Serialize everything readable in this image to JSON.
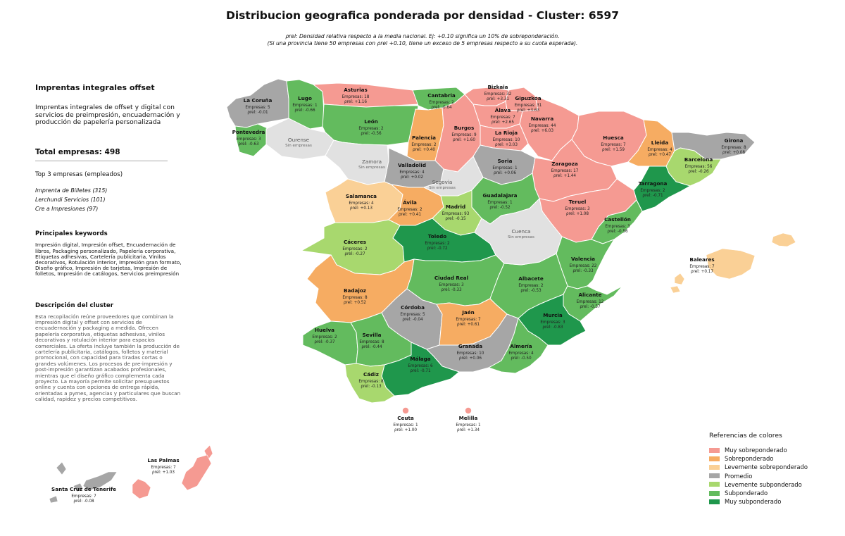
{
  "title": "Distribucion geografica ponderada por densidad - Cluster: 6597",
  "subtitle": {
    "line1": "ρrel: Densidad relativa respecto a la media nacional. Ej: +0.10 significa un 10% de sobreponderación.",
    "line2": "(Si una provincia tiene 50 empresas con ρrel +0.10, tiene un exceso de 5 empresas respecto a su cuota esperada)."
  },
  "sidebar": {
    "cluster_name": "Imprentas integrales offset",
    "cluster_summary": "Imprentas integrales de offset y digital con servicios de preimpresión, encuadernación y producción de papelería personalizada",
    "total_label": "Total empresas: 498",
    "top3_label": "Top 3 empresas (empleados)",
    "top3": [
      "Imprenta de Billetes (315)",
      "Lerchundi Servicios (101)",
      "Cre a Impresiones (97)"
    ],
    "keywords_label": "Principales keywords",
    "keywords": "Impresión digital, Impresión offset, Encuadernación de libros, Packaging personalizado, Papelería corporativa, Etiquetas adhesivas, Cartelería publicitaria, Vinilos decorativos, Rotulación interior, Impresión gran formato, Diseño gráfico, Impresión de tarjetas, Impresión de folletos, Impresión de catálogos, Servicios preimpresión",
    "description_label": "Descripción del cluster",
    "description": "Esta recopilación reúne proveedores que combinan la impresión digital y offset con servicios de encuadernación y packaging a medida. Ofrecen papelería corporativa, etiquetas adhesivas, vinilos decorativos y rotulación interior para espacios comerciales. La oferta incluye también la producción de cartelería publicitaria, catálogos, folletos y material promocional, con capacidad para tiradas cortas o grandes volúmenes. Los procesos de pre-impresión y post-impresión garantizan acabados profesionales, mientras que el diseño gráfico complementa cada proyecto. La mayoría permite solicitar presupuestos online y cuenta con opciones de entrega rápida, orientadas a pymes, agencias y particulares que buscan calidad, rapidez y precios competitivos."
  },
  "legend": {
    "title": "Referencias de colores",
    "items": [
      {
        "key": "muy_sobre",
        "label": "Muy sobreponderado",
        "color": "#f59a92"
      },
      {
        "key": "sobre",
        "label": "Sobreponderado",
        "color": "#f6ac62"
      },
      {
        "key": "lev_sobre",
        "label": "Levemente sobreponderado",
        "color": "#fad096"
      },
      {
        "key": "promedio",
        "label": "Promedio",
        "color": "#a6a6a6"
      },
      {
        "key": "lev_sub",
        "label": "Levemente subponderado",
        "color": "#a8d86e"
      },
      {
        "key": "sub",
        "label": "Subponderado",
        "color": "#63bb5e"
      },
      {
        "key": "muy_sub",
        "label": "Muy subponderado",
        "color": "#1f974c"
      }
    ]
  },
  "no_data_color": "#e1e1e1",
  "empresas_prefix": "Empresas: ",
  "rho_prefix": "ρrel: ",
  "no_data_label": "Sin empresas",
  "provinces": [
    {
      "name": "La Coruña",
      "empresas": 5,
      "rho": "-0.01",
      "cat": "promedio"
    },
    {
      "name": "Lugo",
      "empresas": 1,
      "rho": "-0.66",
      "cat": "sub"
    },
    {
      "name": "Asturias",
      "empresas": 18,
      "rho": "+1.16",
      "cat": "muy_sobre"
    },
    {
      "name": "Cantabria",
      "empresas": 2,
      "rho": "-0.64",
      "cat": "sub"
    },
    {
      "name": "Bizkaia",
      "empresas": 32,
      "rho": "+3.31",
      "cat": "muy_sobre"
    },
    {
      "name": "Gipuzkoa",
      "empresas": 31,
      "rho": "+3.63",
      "cat": "muy_sobre"
    },
    {
      "name": "Álava",
      "empresas": 7,
      "rho": "+2.65",
      "cat": "muy_sobre"
    },
    {
      "name": "Navarra",
      "empresas": 44,
      "rho": "+6.03",
      "cat": "muy_sobre"
    },
    {
      "name": "Pontevedra",
      "empresas": 3,
      "rho": "-0.63",
      "cat": "sub"
    },
    {
      "name": "León",
      "empresas": 2,
      "rho": "-0.56",
      "cat": "sub"
    },
    {
      "name": "Palencia",
      "empresas": 2,
      "rho": "+0.40",
      "cat": "sobre"
    },
    {
      "name": "Burgos",
      "empresas": 9,
      "rho": "+1.60",
      "cat": "muy_sobre"
    },
    {
      "name": "La Rioja",
      "empresas": 10,
      "rho": "+3.03",
      "cat": "muy_sobre"
    },
    {
      "name": "Huesca",
      "empresas": 7,
      "rho": "+1.59",
      "cat": "muy_sobre"
    },
    {
      "name": "Lleida",
      "empresas": 4,
      "rho": "+0.47",
      "cat": "sobre"
    },
    {
      "name": "Girona",
      "empresas": 8,
      "rho": "+0.08",
      "cat": "promedio"
    },
    {
      "name": "Barcelona",
      "empresas": 56,
      "rho": "-0.26",
      "cat": "lev_sub"
    },
    {
      "name": "Valladolid",
      "empresas": 4,
      "rho": "+0.02",
      "cat": "promedio"
    },
    {
      "name": "Soria",
      "empresas": 1,
      "rho": "+0.06",
      "cat": "promedio"
    },
    {
      "name": "Zaragoza",
      "empresas": 17,
      "rho": "+1.44",
      "cat": "muy_sobre"
    },
    {
      "name": "Tarragona",
      "empresas": 2,
      "rho": "-0.71",
      "cat": "muy_sub"
    },
    {
      "name": "Salamanca",
      "empresas": 4,
      "rho": "+0.13",
      "cat": "lev_sobre"
    },
    {
      "name": "Ávila",
      "empresas": 2,
      "rho": "+0.41",
      "cat": "sobre"
    },
    {
      "name": "Madrid",
      "empresas": 93,
      "rho": "-0.15",
      "cat": "lev_sub"
    },
    {
      "name": "Guadalajara",
      "empresas": 1,
      "rho": "-0.52",
      "cat": "sub"
    },
    {
      "name": "Teruel",
      "empresas": 3,
      "rho": "+1.08",
      "cat": "muy_sobre"
    },
    {
      "name": "Castellón",
      "empresas": 3,
      "rho": "-0.56",
      "cat": "sub"
    },
    {
      "name": "Cáceres",
      "empresas": 2,
      "rho": "-0.27",
      "cat": "lev_sub"
    },
    {
      "name": "Toledo",
      "empresas": 2,
      "rho": "-0.72",
      "cat": "muy_sub"
    },
    {
      "name": "Valencia",
      "empresas": 22,
      "rho": "-0.33",
      "cat": "sub"
    },
    {
      "name": "Badajoz",
      "empresas": 8,
      "rho": "+0.52",
      "cat": "sobre"
    },
    {
      "name": "Ciudad Real",
      "empresas": 3,
      "rho": "-0.33",
      "cat": "sub"
    },
    {
      "name": "Albacete",
      "empresas": 2,
      "rho": "-0.53",
      "cat": "sub"
    },
    {
      "name": "Alicante",
      "empresas": 12,
      "rho": "-0.57",
      "cat": "sub"
    },
    {
      "name": "Córdoba",
      "empresas": 5,
      "rho": "-0.04",
      "cat": "promedio"
    },
    {
      "name": "Jaén",
      "empresas": 7,
      "rho": "+0.61",
      "cat": "sobre"
    },
    {
      "name": "Murcia",
      "empresas": 3,
      "rho": "-0.83",
      "cat": "muy_sub"
    },
    {
      "name": "Huelva",
      "empresas": 2,
      "rho": "-0.37",
      "cat": "sub"
    },
    {
      "name": "Sevilla",
      "empresas": 8,
      "rho": "-0.44",
      "cat": "sub"
    },
    {
      "name": "Granada",
      "empresas": 10,
      "rho": "+0.06",
      "cat": "promedio"
    },
    {
      "name": "Almería",
      "empresas": 4,
      "rho": "-0.50",
      "cat": "sub"
    },
    {
      "name": "Málaga",
      "empresas": 6,
      "rho": "-0.71",
      "cat": "muy_sub"
    },
    {
      "name": "Cádiz",
      "empresas": 8,
      "rho": "-0.13",
      "cat": "lev_sub"
    },
    {
      "name": "Baleares",
      "empresas": 7,
      "rho": "+0.17",
      "cat": "lev_sobre"
    },
    {
      "name": "Ceuta",
      "empresas": 1,
      "rho": "+1.00",
      "cat": "muy_sobre"
    },
    {
      "name": "Melilla",
      "empresas": 1,
      "rho": "+1.34",
      "cat": "muy_sobre"
    },
    {
      "name": "Las Palmas",
      "empresas": 7,
      "rho": "+1.03",
      "cat": "muy_sobre"
    },
    {
      "name": "Santa Cruz de Tenerife",
      "empresas": 7,
      "rho": "-0.08",
      "cat": "promedio"
    },
    {
      "name": "Ourense",
      "empresas": null,
      "rho": null,
      "cat": "none"
    },
    {
      "name": "Zamora",
      "empresas": null,
      "rho": null,
      "cat": "none"
    },
    {
      "name": "Segovia",
      "empresas": null,
      "rho": null,
      "cat": "none"
    },
    {
      "name": "Cuenca",
      "empresas": null,
      "rho": null,
      "cat": "none"
    }
  ]
}
